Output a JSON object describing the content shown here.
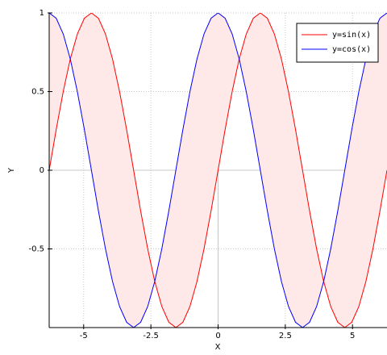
{
  "chart_data": {
    "type": "line",
    "xlabel": "X",
    "ylabel": "Y",
    "x": [
      -6.283,
      -6.021,
      -5.76,
      -5.498,
      -5.236,
      -4.974,
      -4.712,
      -4.451,
      -4.189,
      -3.927,
      -3.665,
      -3.403,
      -3.142,
      -2.88,
      -2.618,
      -2.356,
      -2.094,
      -1.833,
      -1.571,
      -1.309,
      -1.047,
      -0.785,
      -0.524,
      -0.262,
      0,
      0.262,
      0.524,
      0.785,
      1.047,
      1.309,
      1.571,
      1.833,
      2.094,
      2.356,
      2.618,
      2.88,
      3.142,
      3.403,
      3.665,
      3.927,
      4.189,
      4.451,
      4.712,
      4.974,
      5.236,
      5.498,
      5.76,
      6.021,
      6.283
    ],
    "series": [
      {
        "name": "y=sin(x)",
        "color": "#ff0000",
        "values": [
          0,
          0.259,
          0.5,
          0.707,
          0.866,
          0.966,
          1,
          0.966,
          0.866,
          0.707,
          0.5,
          0.259,
          0,
          -0.259,
          -0.5,
          -0.707,
          -0.866,
          -0.966,
          -1,
          -0.966,
          -0.866,
          -0.707,
          -0.5,
          -0.259,
          0,
          0.259,
          0.5,
          0.707,
          0.866,
          0.966,
          1,
          0.966,
          0.866,
          0.707,
          0.5,
          0.259,
          0,
          -0.259,
          -0.5,
          -0.707,
          -0.866,
          -0.966,
          -1,
          -0.966,
          -0.866,
          -0.707,
          -0.5,
          -0.259,
          0
        ]
      },
      {
        "name": "y=cos(x)",
        "color": "#0000ff",
        "values": [
          1,
          0.966,
          0.866,
          0.707,
          0.5,
          0.259,
          0,
          -0.259,
          -0.5,
          -0.707,
          -0.866,
          -0.966,
          -1,
          -0.966,
          -0.866,
          -0.707,
          -0.5,
          -0.259,
          0,
          0.259,
          0.5,
          0.707,
          0.866,
          0.966,
          1,
          0.966,
          0.866,
          0.707,
          0.5,
          0.259,
          0,
          -0.259,
          -0.5,
          -0.707,
          -0.866,
          -0.966,
          -1,
          -0.966,
          -0.866,
          -0.707,
          -0.5,
          -0.259,
          0,
          0.259,
          0.5,
          0.707,
          0.866,
          0.966,
          1
        ]
      }
    ],
    "fill_between": "#ffe8e8",
    "xlim": [
      -6.283,
      6.283
    ],
    "ylim": [
      -1,
      1
    ],
    "xticks": [
      -5,
      -2.5,
      0,
      2.5,
      5
    ],
    "yticks": [
      -0.5,
      0,
      0.5,
      1
    ],
    "grid": true,
    "legend": "top-right"
  }
}
